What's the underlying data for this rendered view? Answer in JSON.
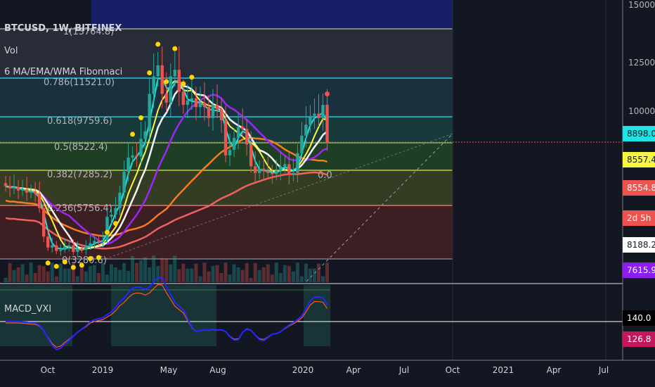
{
  "header": {
    "symbol": "BTCUSD, 1W, BITFINEX",
    "vol": "Vol",
    "indicator": "6 MA/EMA/WMA Fibonnaci"
  },
  "macd_label": "MACD_VXI",
  "colors": {
    "background": "#131722",
    "grid": "#2a2e39",
    "up": "#26a69a",
    "down": "#ef5350",
    "ema_cyan": "#22e3e3",
    "ma_yellow": "#f7f742",
    "ma_white": "#f5f5f5",
    "ma_purple": "#9c27f0",
    "ma_orange": "#f57c1f",
    "ma_red": "#f06060",
    "macd_blue": "#2028ff",
    "macd_signal": "#ff5722"
  },
  "chart_data": {
    "type": "candlestick",
    "symbol": "BTCUSD",
    "timeframe": "1W",
    "exchange": "BITFINEX",
    "y_ticks": [
      15000.0,
      12500.0,
      10000.0
    ],
    "x_ticks": [
      "Oct",
      "2019",
      "May",
      "Aug",
      "2020",
      "Apr",
      "Jul",
      "Oct",
      "2021",
      "Apr",
      "Jul"
    ],
    "fib_levels": [
      {
        "label": "1(13764.8)",
        "value": 13764.8
      },
      {
        "label": "0.786(11521.0)",
        "value": 11521.0
      },
      {
        "label": "0.618(9759.6)",
        "value": 9759.6
      },
      {
        "label": "0.5(8522.4)",
        "value": 8522.4
      },
      {
        "label": "0.382(7285.2)",
        "value": 7285.2
      },
      {
        "label": "0.236(5756.4)",
        "value": 5756.4
      },
      {
        "label": "0(3280.6)",
        "value": 3280.6
      }
    ],
    "extra_label": "0.0",
    "price_labels": [
      {
        "text": "8898.0",
        "bg": "#22e3e3",
        "fg": "#131722"
      },
      {
        "text": "8557.4",
        "bg": "#f7f742",
        "fg": "#131722"
      },
      {
        "text": "8554.8",
        "bg": "#ef5350",
        "fg": "#ffffff"
      },
      {
        "text": "2d 5h",
        "bg": "#ef5350",
        "fg": "#ffffff"
      },
      {
        "text": "8188.2",
        "bg": "#ffffff",
        "fg": "#131722"
      },
      {
        "text": "7615.9",
        "bg": "#8c1ff0",
        "fg": "#ffffff"
      }
    ],
    "macd_labels": [
      {
        "text": "140.0",
        "bg": "#000000",
        "fg": "#ffffff"
      },
      {
        "text": "126.8",
        "bg": "#c2185b",
        "fg": "#ffffff"
      }
    ],
    "close_approx": [
      6600,
      6500,
      6550,
      6400,
      6450,
      6300,
      6350,
      6250,
      5600,
      4300,
      3800,
      3900,
      3650,
      3700,
      3850,
      3900,
      3600,
      3750,
      3700,
      3850,
      4000,
      4100,
      4050,
      4150,
      5200,
      5300,
      5600,
      6300,
      7250,
      7900,
      8000,
      7950,
      8750,
      9100,
      10800,
      11600,
      12100,
      10800,
      10400,
      11600,
      11900,
      10900,
      10300,
      10500,
      10600,
      10200,
      10400,
      10200,
      9700,
      10300,
      10100,
      9600,
      8000,
      8250,
      8800,
      9300,
      9200,
      8500,
      7500,
      7200,
      7400,
      7300,
      7200,
      7150,
      7300,
      7500,
      7600,
      7100,
      7200,
      8100,
      8900,
      9400,
      9800,
      9900,
      9700,
      10300,
      8555
    ]
  }
}
